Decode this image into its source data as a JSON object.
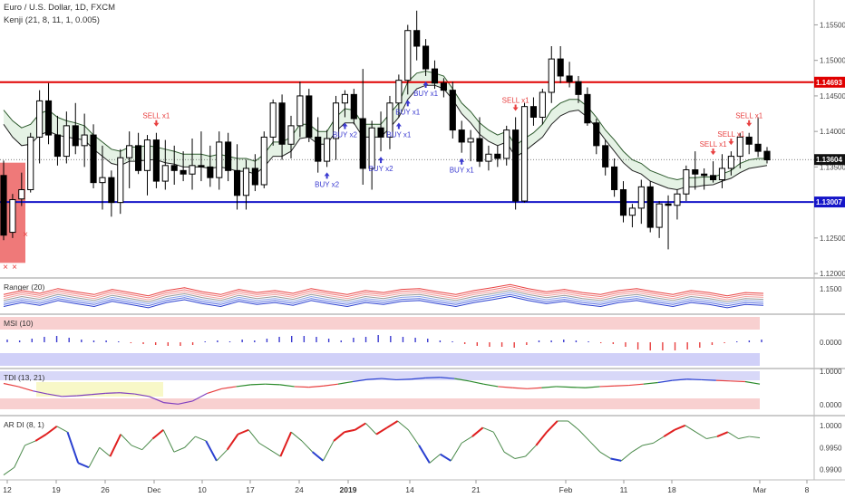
{
  "header": {
    "symbol": "Euro / U.S. Dollar, 1D, FXCM",
    "indicator": "Kenji (21, 8, 11, 1, 0.005)"
  },
  "colors": {
    "up_body": "#ffffff",
    "down_body": "#000000",
    "resistance": "#e00000",
    "support": "#1515c8",
    "buy_signal": "#3a3ad0",
    "sell_signal": "#e84040",
    "price_badge": "#111111",
    "resistance_badge": "#e00000",
    "support_badge": "#1515c8"
  },
  "chart_data": {
    "type": "candlestick",
    "main": {
      "ylim": [
        1.1195,
        1.1585
      ],
      "y_ticks": [
        "1.15500",
        "1.15000",
        "1.14500",
        "1.14000",
        "1.13500",
        "1.13000",
        "1.12500",
        "1.12000"
      ],
      "resistance": {
        "value": 1.14693,
        "label": "1.14693"
      },
      "support": {
        "value": 1.13007,
        "label": "1.13007"
      },
      "last_price": {
        "value": 1.13604,
        "label": "1.13604"
      },
      "candles": [
        [
          1.1338,
          1.1359,
          1.1247,
          1.1254
        ],
        [
          1.1258,
          1.1312,
          1.125,
          1.1304
        ],
        [
          1.1305,
          1.1342,
          1.1295,
          1.1318
        ],
        [
          1.1318,
          1.1398,
          1.1314,
          1.1392
        ],
        [
          1.1392,
          1.1458,
          1.1355,
          1.1443
        ],
        [
          1.1443,
          1.1468,
          1.1382,
          1.1395
        ],
        [
          1.1395,
          1.1422,
          1.1352,
          1.1365
        ],
        [
          1.1365,
          1.1428,
          1.1355,
          1.1408
        ],
        [
          1.1408,
          1.144,
          1.1368,
          1.138
        ],
        [
          1.138,
          1.1425,
          1.135,
          1.1395
        ],
        [
          1.1395,
          1.141,
          1.132,
          1.1328
        ],
        [
          1.1328,
          1.138,
          1.129,
          1.1335
        ],
        [
          1.1335,
          1.1345,
          1.128,
          1.13
        ],
        [
          1.13,
          1.1375,
          1.1284,
          1.1363
        ],
        [
          1.1363,
          1.14,
          1.132,
          1.138
        ],
        [
          1.138,
          1.1398,
          1.134,
          1.1345
        ],
        [
          1.1345,
          1.1395,
          1.131,
          1.1388
        ],
        [
          1.1388,
          1.1398,
          1.132,
          1.133
        ],
        [
          1.133,
          1.1388,
          1.1318,
          1.1352
        ],
        [
          1.1352,
          1.138,
          1.1325,
          1.1345
        ],
        [
          1.1345,
          1.1372,
          1.133,
          1.134
        ],
        [
          1.134,
          1.139,
          1.1318,
          1.1352
        ],
        [
          1.1352,
          1.14,
          1.133,
          1.135
        ],
        [
          1.135,
          1.138,
          1.1322,
          1.1335
        ],
        [
          1.1335,
          1.14,
          1.1318,
          1.1385
        ],
        [
          1.1385,
          1.1398,
          1.133,
          1.1345
        ],
        [
          1.1345,
          1.1382,
          1.129,
          1.131
        ],
        [
          1.131,
          1.136,
          1.129,
          1.1348
        ],
        [
          1.1348,
          1.1368,
          1.1316,
          1.1325
        ],
        [
          1.1325,
          1.14,
          1.132,
          1.1392
        ],
        [
          1.1392,
          1.1445,
          1.138,
          1.144
        ],
        [
          1.144,
          1.1452,
          1.136,
          1.1382
        ],
        [
          1.1382,
          1.1422,
          1.1362,
          1.1408
        ],
        [
          1.1408,
          1.147,
          1.1392,
          1.145
        ],
        [
          1.145,
          1.146,
          1.1385,
          1.1392
        ],
        [
          1.1392,
          1.142,
          1.1342,
          1.1358
        ],
        [
          1.1358,
          1.1402,
          1.135,
          1.139
        ],
        [
          1.139,
          1.145,
          1.136,
          1.144
        ],
        [
          1.144,
          1.1458,
          1.142,
          1.1452
        ],
        [
          1.1452,
          1.146,
          1.141,
          1.1418
        ],
        [
          1.1418,
          1.1488,
          1.1325,
          1.1348
        ],
        [
          1.1348,
          1.1415,
          1.1318,
          1.1405
        ],
        [
          1.1405,
          1.1428,
          1.1372,
          1.1392
        ],
        [
          1.1392,
          1.145,
          1.1375,
          1.144
        ],
        [
          1.144,
          1.148,
          1.142,
          1.1472
        ],
        [
          1.1472,
          1.155,
          1.1452,
          1.1542
        ],
        [
          1.1542,
          1.157,
          1.15,
          1.152
        ],
        [
          1.152,
          1.153,
          1.1478,
          1.1488
        ],
        [
          1.1488,
          1.15,
          1.146,
          1.1468
        ],
        [
          1.1468,
          1.1475,
          1.1448,
          1.1458
        ],
        [
          1.1458,
          1.147,
          1.139,
          1.1402
        ],
        [
          1.1402,
          1.1415,
          1.137,
          1.1385
        ],
        [
          1.1385,
          1.1402,
          1.1358,
          1.139
        ],
        [
          1.139,
          1.142,
          1.135,
          1.1358
        ],
        [
          1.1358,
          1.138,
          1.1345,
          1.1368
        ],
        [
          1.1368,
          1.138,
          1.135,
          1.1362
        ],
        [
          1.1362,
          1.1408,
          1.1352,
          1.1402
        ],
        [
          1.1402,
          1.142,
          1.129,
          1.1302
        ],
        [
          1.1302,
          1.144,
          1.13,
          1.1435
        ],
        [
          1.1435,
          1.1448,
          1.1408,
          1.142
        ],
        [
          1.142,
          1.146,
          1.141,
          1.1455
        ],
        [
          1.1455,
          1.152,
          1.144,
          1.1502
        ],
        [
          1.1502,
          1.152,
          1.1468,
          1.1478
        ],
        [
          1.1478,
          1.1498,
          1.1462,
          1.147
        ],
        [
          1.147,
          1.1478,
          1.144,
          1.1452
        ],
        [
          1.1452,
          1.1462,
          1.1408,
          1.1412
        ],
        [
          1.1412,
          1.1418,
          1.1368,
          1.138
        ],
        [
          1.138,
          1.1388,
          1.1338,
          1.135
        ],
        [
          1.135,
          1.1362,
          1.1308,
          1.1318
        ],
        [
          1.1318,
          1.133,
          1.1272,
          1.1282
        ],
        [
          1.1282,
          1.1298,
          1.1265,
          1.1292
        ],
        [
          1.1292,
          1.1332,
          1.127,
          1.1322
        ],
        [
          1.1322,
          1.133,
          1.1258,
          1.1265
        ],
        [
          1.1265,
          1.1302,
          1.125,
          1.1298
        ],
        [
          1.1298,
          1.131,
          1.1234,
          1.1296
        ],
        [
          1.1296,
          1.1318,
          1.1276,
          1.1312
        ],
        [
          1.1312,
          1.1352,
          1.1302,
          1.1346
        ],
        [
          1.1346,
          1.1372,
          1.1318,
          1.134
        ],
        [
          1.134,
          1.1348,
          1.1318,
          1.1338
        ],
        [
          1.1338,
          1.1358,
          1.1328,
          1.1332
        ],
        [
          1.1332,
          1.1368,
          1.132,
          1.1348
        ],
        [
          1.1348,
          1.1372,
          1.1338,
          1.1365
        ],
        [
          1.1365,
          1.1398,
          1.1348,
          1.1392
        ],
        [
          1.1392,
          1.1398,
          1.1368,
          1.1382
        ],
        [
          1.1382,
          1.142,
          1.1364,
          1.1372
        ],
        [
          1.1372,
          1.1378,
          1.1355,
          1.136
        ]
      ],
      "envelope": {
        "upper": [
          1.143,
          1.1415,
          1.1405,
          1.141,
          1.1425,
          1.143,
          1.142,
          1.1415,
          1.1412,
          1.1408,
          1.1395,
          1.1385,
          1.1375,
          1.1372,
          1.1378,
          1.1378,
          1.138,
          1.1378,
          1.1375,
          1.1372,
          1.1368,
          1.1368,
          1.1368,
          1.1365,
          1.1368,
          1.1365,
          1.1362,
          1.1362,
          1.1358,
          1.1368,
          1.1385,
          1.1385,
          1.1392,
          1.141,
          1.141,
          1.14,
          1.14,
          1.142,
          1.1432,
          1.143,
          1.141,
          1.141,
          1.141,
          1.1425,
          1.144,
          1.147,
          1.1482,
          1.1485,
          1.1482,
          1.1478,
          1.146,
          1.144,
          1.1428,
          1.1412,
          1.1402,
          1.1395,
          1.14,
          1.138,
          1.139,
          1.1398,
          1.141,
          1.143,
          1.144,
          1.1445,
          1.1445,
          1.1435,
          1.142,
          1.1402,
          1.1388,
          1.1372,
          1.136,
          1.1355,
          1.1345,
          1.134,
          1.1335,
          1.1332,
          1.1335,
          1.1335,
          1.1336,
          1.1336,
          1.134,
          1.1345,
          1.1355,
          1.136,
          1.1362,
          1.1362
        ],
        "lower": [
          1.141,
          1.1392,
          1.138,
          1.1382,
          1.1395,
          1.14,
          1.1395,
          1.1392,
          1.139,
          1.1388,
          1.1375,
          1.1365,
          1.1355,
          1.1352,
          1.1358,
          1.1358,
          1.136,
          1.136,
          1.1356,
          1.1354,
          1.135,
          1.135,
          1.135,
          1.1348,
          1.135,
          1.1348,
          1.1344,
          1.1344,
          1.134,
          1.135,
          1.1365,
          1.1365,
          1.1372,
          1.139,
          1.1392,
          1.1382,
          1.1382,
          1.14,
          1.1412,
          1.1412,
          1.1392,
          1.1392,
          1.1392,
          1.1405,
          1.142,
          1.1445,
          1.146,
          1.1465,
          1.1465,
          1.146,
          1.1445,
          1.1425,
          1.1412,
          1.1396,
          1.1386,
          1.138,
          1.1385,
          1.1364,
          1.1372,
          1.1382,
          1.1392,
          1.141,
          1.1422,
          1.1428,
          1.143,
          1.142,
          1.1405,
          1.1388,
          1.1372,
          1.1356,
          1.1345,
          1.134,
          1.133,
          1.1325,
          1.132,
          1.1318,
          1.1322,
          1.1322,
          1.1324,
          1.1325,
          1.133,
          1.1334,
          1.1342,
          1.1348,
          1.135,
          1.1352
        ]
      },
      "signals": [
        {
          "index": 17,
          "type": "sell",
          "label": "SELL x1"
        },
        {
          "index": 36,
          "type": "buy",
          "label": "BUY x2"
        },
        {
          "index": 38,
          "type": "buy",
          "label": "BUY x2"
        },
        {
          "index": 42,
          "type": "buy",
          "label": "BUY x2"
        },
        {
          "index": 44,
          "type": "buy",
          "label": "BUY x1"
        },
        {
          "index": 45,
          "type": "buy",
          "label": "BUY x1"
        },
        {
          "index": 47,
          "type": "buy",
          "label": "BUY x1"
        },
        {
          "index": 51,
          "type": "buy",
          "label": "BUY x1"
        },
        {
          "index": 57,
          "type": "sell",
          "label": "SELL x1"
        },
        {
          "index": 79,
          "type": "sell",
          "label": "SELL x1"
        },
        {
          "index": 81,
          "type": "sell",
          "label": "SELL x1"
        },
        {
          "index": 83,
          "type": "sell",
          "label": "SELL x1"
        }
      ]
    },
    "x_labels": [
      "12",
      "19",
      "26",
      "Dec",
      "10",
      "17",
      "24",
      "2019",
      "14",
      "21",
      "Feb",
      "11",
      "18",
      "Mar",
      "8"
    ],
    "panels": [
      {
        "name": "Ranger (20)",
        "type": "bands",
        "y_ticks": [
          "1.1500"
        ],
        "values_upper": [
          1.1505,
          1.1515,
          1.1508,
          1.152,
          1.1512,
          1.1505,
          1.1518,
          1.151,
          1.1502,
          1.1515,
          1.1522,
          1.1512,
          1.1505,
          1.1518,
          1.151,
          1.1515,
          1.1508,
          1.152,
          1.1512,
          1.1505,
          1.1515,
          1.151,
          1.1518,
          1.152,
          1.1512,
          1.1505,
          1.1515,
          1.1522,
          1.153,
          1.152,
          1.1512,
          1.1518,
          1.151,
          1.1505,
          1.1515,
          1.152,
          1.1512,
          1.1505,
          1.1515,
          1.151,
          1.1502,
          1.151,
          1.1508
        ]
      },
      {
        "name": "MSI (10)",
        "type": "histogram",
        "y_ticks": [
          "0.0000"
        ],
        "values": [
          0.3,
          0.2,
          0.4,
          0.6,
          0.7,
          0.5,
          0.3,
          0.2,
          0.2,
          0.1,
          -0.1,
          -0.2,
          -0.3,
          -0.4,
          -0.4,
          -0.3,
          0.1,
          0.2,
          0.1,
          0.3,
          0.2,
          0.4,
          0.6,
          0.7,
          0.7,
          0.6,
          0.4,
          0.2,
          0.5,
          0.6,
          0.8,
          0.7,
          0.6,
          0.5,
          0.4,
          0.2,
          0.1,
          -0.2,
          -0.4,
          -0.5,
          -0.5,
          -0.6,
          -0.3,
          0.2,
          0.2,
          0.3,
          0.2,
          0.1,
          -0.1,
          -0.2,
          -0.5,
          -0.8,
          -0.9,
          -0.9,
          -0.9,
          -0.8,
          -0.6,
          -0.3,
          -0.1,
          0.1,
          0.2,
          0.3
        ]
      },
      {
        "name": "TDI (13, 21)",
        "type": "line",
        "y_ticks": [
          "1.0000",
          "0.0000"
        ],
        "values": [
          0.72,
          0.62,
          0.48,
          0.38,
          0.3,
          0.32,
          0.36,
          0.4,
          0.42,
          0.38,
          0.3,
          0.1,
          0.05,
          0.15,
          0.4,
          0.55,
          0.62,
          0.68,
          0.7,
          0.68,
          0.62,
          0.6,
          0.64,
          0.7,
          0.78,
          0.85,
          0.88,
          0.84,
          0.86,
          0.9,
          0.92,
          0.88,
          0.8,
          0.7,
          0.62,
          0.58,
          0.55,
          0.58,
          0.62,
          0.6,
          0.58,
          0.62,
          0.64,
          0.66,
          0.7,
          0.75,
          0.82,
          0.86,
          0.84,
          0.82,
          0.8,
          0.78,
          0.7
        ]
      },
      {
        "name": "AR DI (8, 1)",
        "type": "line",
        "y_ticks": [
          "1.0000",
          "0.9950",
          "0.9900"
        ],
        "values": [
          0.9888,
          0.9905,
          0.9955,
          0.9965,
          0.998,
          0.9998,
          0.9985,
          0.9915,
          0.9905,
          0.995,
          0.993,
          0.998,
          0.9955,
          0.9945,
          0.997,
          0.999,
          0.994,
          0.995,
          0.9975,
          0.9965,
          0.992,
          0.9945,
          0.998,
          0.999,
          0.996,
          0.9945,
          0.993,
          0.9985,
          0.9965,
          0.994,
          0.992,
          0.9965,
          0.9985,
          0.999,
          1.0005,
          0.998,
          0.9995,
          1.001,
          0.999,
          0.9955,
          0.9915,
          0.9935,
          0.992,
          0.996,
          0.9975,
          0.9995,
          0.9985,
          0.994,
          0.9925,
          0.993,
          0.9955,
          0.9985,
          1.001,
          1.001,
          0.999,
          0.9965,
          0.994,
          0.9925,
          0.992,
          0.994,
          0.9955,
          0.996,
          0.9975,
          0.999,
          1.0,
          0.9985,
          0.997,
          0.9975,
          0.9985,
          0.997,
          0.9975,
          0.9972
        ]
      }
    ]
  }
}
